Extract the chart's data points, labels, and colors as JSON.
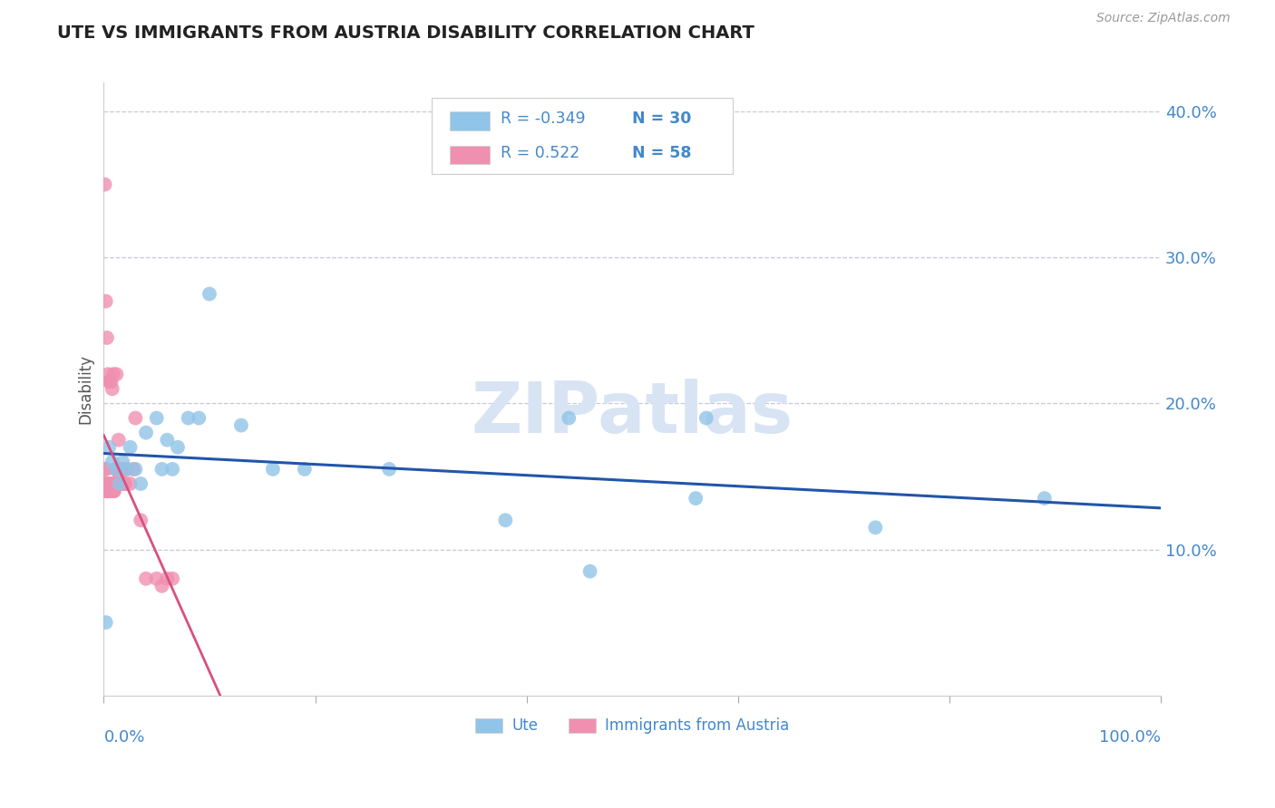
{
  "title": "UTE VS IMMIGRANTS FROM AUSTRIA DISABILITY CORRELATION CHART",
  "source": "Source: ZipAtlas.com",
  "ylabel": "Disability",
  "R_ute": -0.349,
  "N_ute": 30,
  "R_austria": 0.522,
  "N_austria": 58,
  "ute_color": "#90C4E8",
  "austria_color": "#F090B0",
  "blue_line_color": "#2255AA",
  "pink_line_color": "#D85080",
  "background_color": "#FFFFFF",
  "grid_color": "#C8C8D8",
  "title_color": "#222222",
  "axis_label_color": "#4488CC",
  "source_color": "#999999",
  "watermark_color": "#D8E4F4",
  "xlim": [
    0,
    1.0
  ],
  "ylim": [
    0,
    0.42
  ],
  "yticks": [
    0.0,
    0.1,
    0.2,
    0.3,
    0.4
  ],
  "ytick_labels": [
    "",
    "10.0%",
    "20.0%",
    "30.0%",
    "40.0%"
  ],
  "ute_x": [
    0.002,
    0.005,
    0.008,
    0.012,
    0.015,
    0.018,
    0.022,
    0.025,
    0.03,
    0.035,
    0.04,
    0.05,
    0.055,
    0.06,
    0.065,
    0.07,
    0.08,
    0.09,
    0.1,
    0.13,
    0.16,
    0.19,
    0.27,
    0.38,
    0.46,
    0.56,
    0.73,
    0.89,
    0.44,
    0.57
  ],
  "ute_y": [
    0.05,
    0.17,
    0.16,
    0.155,
    0.145,
    0.16,
    0.155,
    0.17,
    0.155,
    0.145,
    0.18,
    0.19,
    0.155,
    0.175,
    0.155,
    0.17,
    0.19,
    0.19,
    0.275,
    0.185,
    0.155,
    0.155,
    0.155,
    0.12,
    0.085,
    0.135,
    0.115,
    0.135,
    0.19,
    0.19
  ],
  "austria_x": [
    0.001,
    0.001,
    0.001,
    0.001,
    0.002,
    0.002,
    0.002,
    0.003,
    0.003,
    0.003,
    0.004,
    0.004,
    0.004,
    0.005,
    0.005,
    0.005,
    0.006,
    0.006,
    0.007,
    0.007,
    0.008,
    0.008,
    0.009,
    0.009,
    0.01,
    0.01,
    0.011,
    0.012,
    0.013,
    0.014,
    0.015,
    0.016,
    0.017,
    0.018,
    0.019,
    0.02,
    0.022,
    0.025,
    0.028,
    0.03,
    0.035,
    0.04,
    0.05,
    0.055,
    0.06,
    0.065,
    0.001,
    0.002,
    0.003,
    0.004,
    0.005,
    0.006,
    0.007,
    0.008,
    0.009,
    0.012,
    0.015,
    0.02
  ],
  "austria_y": [
    0.155,
    0.145,
    0.145,
    0.14,
    0.155,
    0.145,
    0.14,
    0.145,
    0.14,
    0.14,
    0.14,
    0.145,
    0.14,
    0.14,
    0.145,
    0.14,
    0.14,
    0.145,
    0.14,
    0.14,
    0.14,
    0.145,
    0.14,
    0.14,
    0.14,
    0.145,
    0.155,
    0.155,
    0.145,
    0.175,
    0.145,
    0.155,
    0.145,
    0.145,
    0.155,
    0.145,
    0.155,
    0.145,
    0.155,
    0.19,
    0.12,
    0.08,
    0.08,
    0.075,
    0.08,
    0.08,
    0.35,
    0.27,
    0.245,
    0.22,
    0.215,
    0.215,
    0.215,
    0.21,
    0.22,
    0.22,
    0.15,
    0.145
  ]
}
